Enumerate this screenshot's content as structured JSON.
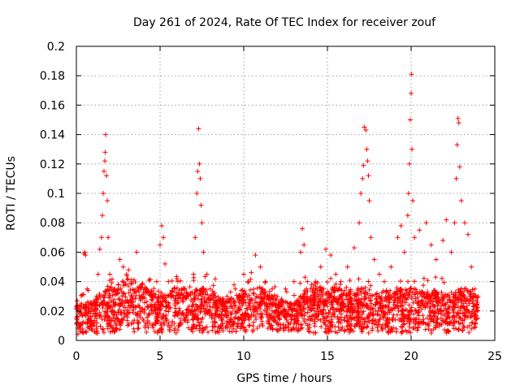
{
  "chart_data": {
    "type": "scatter",
    "title": "Day 261 of 2024, Rate Of TEC Index for receiver zouf",
    "xlabel": "GPS time / hours",
    "ylabel": "ROTI / TECUs",
    "xlim": [
      0,
      25
    ],
    "ylim": [
      0,
      0.2
    ],
    "x_ticks": [
      "0",
      "5",
      "10",
      "15",
      "20",
      "25"
    ],
    "y_ticks": [
      "0",
      "0.02",
      "0.04",
      "0.06",
      "0.08",
      "0.1",
      "0.12",
      "0.14",
      "0.16",
      "0.18",
      "0.2"
    ],
    "x_tick_values": [
      0,
      5,
      10,
      15,
      20,
      25
    ],
    "y_tick_values": [
      0,
      0.02,
      0.04,
      0.06,
      0.08,
      0.1,
      0.12,
      0.14,
      0.16,
      0.18,
      0.2
    ],
    "grid": true,
    "marker": "+",
    "color": "#ff0000",
    "series": [
      {
        "points": [
          [
            0.1,
            0.012
          ],
          [
            0.2,
            0.018
          ],
          [
            0.3,
            0.025
          ],
          [
            0.35,
            0.031
          ],
          [
            0.45,
            0.059
          ],
          [
            0.5,
            0.06
          ],
          [
            0.55,
            0.058
          ],
          [
            0.6,
            0.022
          ],
          [
            0.8,
            0.015
          ],
          [
            1.0,
            0.024
          ],
          [
            1.2,
            0.03
          ],
          [
            1.3,
            0.045
          ],
          [
            1.4,
            0.062
          ],
          [
            1.5,
            0.07
          ],
          [
            1.55,
            0.085
          ],
          [
            1.6,
            0.1
          ],
          [
            1.65,
            0.115
          ],
          [
            1.7,
            0.122
          ],
          [
            1.72,
            0.128
          ],
          [
            1.75,
            0.14
          ],
          [
            1.8,
            0.112
          ],
          [
            1.85,
            0.095
          ],
          [
            1.9,
            0.07
          ],
          [
            2.0,
            0.045
          ],
          [
            2.3,
            0.035
          ],
          [
            2.6,
            0.055
          ],
          [
            2.8,
            0.05
          ],
          [
            3.0,
            0.045
          ],
          [
            3.3,
            0.04
          ],
          [
            3.6,
            0.06
          ],
          [
            3.9,
            0.03
          ],
          [
            4.2,
            0.035
          ],
          [
            4.5,
            0.03
          ],
          [
            4.8,
            0.04
          ],
          [
            5.0,
            0.065
          ],
          [
            5.1,
            0.078
          ],
          [
            5.2,
            0.07
          ],
          [
            5.3,
            0.052
          ],
          [
            5.5,
            0.04
          ],
          [
            5.8,
            0.03
          ],
          [
            6.0,
            0.042
          ],
          [
            6.3,
            0.035
          ],
          [
            6.6,
            0.03
          ],
          [
            7.0,
            0.045
          ],
          [
            7.1,
            0.07
          ],
          [
            7.2,
            0.1
          ],
          [
            7.25,
            0.115
          ],
          [
            7.3,
            0.144
          ],
          [
            7.35,
            0.12
          ],
          [
            7.4,
            0.11
          ],
          [
            7.45,
            0.092
          ],
          [
            7.5,
            0.08
          ],
          [
            7.6,
            0.06
          ],
          [
            7.8,
            0.045
          ],
          [
            8.0,
            0.035
          ],
          [
            8.3,
            0.03
          ],
          [
            8.6,
            0.025
          ],
          [
            9.0,
            0.03
          ],
          [
            9.5,
            0.035
          ],
          [
            10.0,
            0.045
          ],
          [
            10.3,
            0.04
          ],
          [
            10.7,
            0.058
          ],
          [
            11.0,
            0.05
          ],
          [
            11.3,
            0.04
          ],
          [
            11.7,
            0.035
          ],
          [
            12.0,
            0.03
          ],
          [
            12.5,
            0.035
          ],
          [
            13.0,
            0.04
          ],
          [
            13.4,
            0.06
          ],
          [
            13.5,
            0.076
          ],
          [
            13.6,
            0.065
          ],
          [
            13.8,
            0.04
          ],
          [
            14.0,
            0.035
          ],
          [
            14.3,
            0.04
          ],
          [
            14.6,
            0.05
          ],
          [
            14.9,
            0.062
          ],
          [
            15.2,
            0.058
          ],
          [
            15.5,
            0.045
          ],
          [
            15.8,
            0.04
          ],
          [
            16.2,
            0.05
          ],
          [
            16.6,
            0.063
          ],
          [
            16.9,
            0.08
          ],
          [
            17.0,
            0.1
          ],
          [
            17.1,
            0.11
          ],
          [
            17.15,
            0.119
          ],
          [
            17.2,
            0.145
          ],
          [
            17.3,
            0.143
          ],
          [
            17.35,
            0.13
          ],
          [
            17.4,
            0.122
          ],
          [
            17.45,
            0.112
          ],
          [
            17.5,
            0.095
          ],
          [
            17.6,
            0.07
          ],
          [
            17.8,
            0.055
          ],
          [
            18.1,
            0.045
          ],
          [
            18.4,
            0.04
          ],
          [
            18.8,
            0.05
          ],
          [
            19.2,
            0.07
          ],
          [
            19.4,
            0.078
          ],
          [
            19.6,
            0.06
          ],
          [
            19.8,
            0.085
          ],
          [
            19.85,
            0.1
          ],
          [
            19.9,
            0.12
          ],
          [
            19.95,
            0.15
          ],
          [
            20.0,
            0.168
          ],
          [
            20.02,
            0.181
          ],
          [
            20.05,
            0.13
          ],
          [
            20.1,
            0.095
          ],
          [
            20.2,
            0.07
          ],
          [
            20.5,
            0.075
          ],
          [
            20.9,
            0.08
          ],
          [
            21.2,
            0.065
          ],
          [
            21.5,
            0.055
          ],
          [
            21.9,
            0.068
          ],
          [
            22.1,
            0.082
          ],
          [
            22.4,
            0.06
          ],
          [
            22.6,
            0.08
          ],
          [
            22.7,
            0.11
          ],
          [
            22.75,
            0.133
          ],
          [
            22.8,
            0.151
          ],
          [
            22.85,
            0.148
          ],
          [
            22.9,
            0.118
          ],
          [
            23.0,
            0.095
          ],
          [
            23.2,
            0.08
          ],
          [
            23.4,
            0.072
          ],
          [
            23.6,
            0.05
          ],
          [
            23.8,
            0.035
          ],
          [
            24.0,
            0.03
          ]
        ]
      }
    ],
    "dense_band": [
      [
        0.0,
        0.004,
        0.024
      ],
      [
        0.5,
        0.004,
        0.025
      ],
      [
        1.0,
        0.004,
        0.028
      ],
      [
        1.5,
        0.004,
        0.032
      ],
      [
        2.0,
        0.005,
        0.036
      ],
      [
        2.5,
        0.005,
        0.04
      ],
      [
        3.0,
        0.005,
        0.042
      ],
      [
        3.5,
        0.005,
        0.042
      ],
      [
        4.0,
        0.005,
        0.038
      ],
      [
        4.5,
        0.005,
        0.034
      ],
      [
        5.0,
        0.004,
        0.03
      ],
      [
        5.5,
        0.005,
        0.033
      ],
      [
        6.0,
        0.005,
        0.036
      ],
      [
        6.5,
        0.005,
        0.036
      ],
      [
        7.0,
        0.005,
        0.034
      ],
      [
        7.5,
        0.005,
        0.036
      ],
      [
        8.0,
        0.005,
        0.035
      ],
      [
        8.5,
        0.005,
        0.03
      ],
      [
        9.0,
        0.005,
        0.028
      ],
      [
        9.5,
        0.005,
        0.03
      ],
      [
        10.0,
        0.006,
        0.036
      ],
      [
        10.5,
        0.006,
        0.038
      ],
      [
        11.0,
        0.006,
        0.036
      ],
      [
        11.5,
        0.006,
        0.032
      ],
      [
        12.0,
        0.006,
        0.028
      ],
      [
        12.5,
        0.006,
        0.026
      ],
      [
        13.0,
        0.006,
        0.026
      ],
      [
        13.5,
        0.005,
        0.032
      ],
      [
        14.0,
        0.005,
        0.036
      ],
      [
        14.5,
        0.005,
        0.038
      ],
      [
        15.0,
        0.005,
        0.036
      ],
      [
        15.5,
        0.005,
        0.036
      ],
      [
        16.0,
        0.005,
        0.034
      ],
      [
        16.5,
        0.005,
        0.032
      ],
      [
        17.0,
        0.005,
        0.034
      ],
      [
        17.5,
        0.005,
        0.034
      ],
      [
        18.0,
        0.005,
        0.032
      ],
      [
        18.5,
        0.005,
        0.034
      ],
      [
        19.0,
        0.005,
        0.034
      ],
      [
        19.5,
        0.005,
        0.036
      ],
      [
        20.0,
        0.005,
        0.036
      ],
      [
        20.5,
        0.005,
        0.034
      ],
      [
        21.0,
        0.005,
        0.034
      ],
      [
        21.5,
        0.005,
        0.034
      ],
      [
        22.0,
        0.005,
        0.032
      ],
      [
        22.5,
        0.005,
        0.034
      ],
      [
        23.0,
        0.005,
        0.036
      ],
      [
        23.5,
        0.005,
        0.034
      ],
      [
        24.0,
        0.005,
        0.03
      ]
    ]
  }
}
